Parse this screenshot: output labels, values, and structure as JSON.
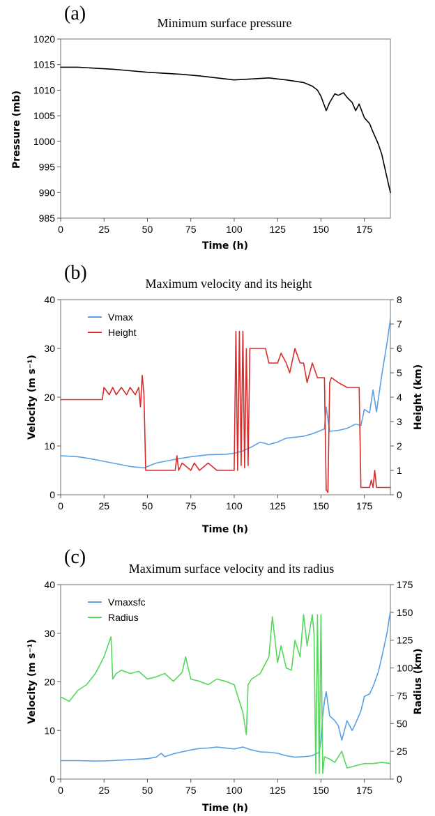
{
  "chart_data": [
    {
      "panel_label": "(a)",
      "type": "line",
      "title": "Minimum surface pressure",
      "xlabel": "Time (h)",
      "ylabel": "Pressure (mb)",
      "xlim": [
        0,
        190
      ],
      "ylim": [
        985,
        1020
      ],
      "xticks": [
        "0",
        "25",
        "50",
        "75",
        "100",
        "125",
        "150",
        "175"
      ],
      "yticks": [
        "985",
        "990",
        "995",
        "1000",
        "1005",
        "1010",
        "1015",
        "1020"
      ],
      "grid": false,
      "series": [
        {
          "color": "#000000",
          "x": [
            0,
            10,
            20,
            30,
            40,
            50,
            60,
            70,
            80,
            90,
            100,
            110,
            120,
            125,
            130,
            140,
            145,
            148,
            150,
            152,
            153,
            155,
            158,
            160,
            163,
            165,
            168,
            170,
            172,
            175,
            178,
            180,
            183,
            185,
            187,
            188,
            189,
            190
          ],
          "y": [
            1014.5,
            1014.5,
            1014.3,
            1014.1,
            1013.8,
            1013.5,
            1013.3,
            1013.1,
            1012.8,
            1012.4,
            1012.0,
            1012.2,
            1012.4,
            1012.2,
            1012.0,
            1011.5,
            1010.8,
            1010.0,
            1008.8,
            1007.0,
            1006.0,
            1007.6,
            1009.3,
            1009.0,
            1009.5,
            1008.6,
            1007.6,
            1006.0,
            1007.3,
            1004.6,
            1003.5,
            1001.8,
            999.5,
            997.5,
            994.5,
            993.0,
            991.5,
            990.0
          ]
        }
      ]
    },
    {
      "panel_label": "(b)",
      "type": "line",
      "title": "Maximum velocity and its height",
      "xlabel": "Time (h)",
      "ylabel": "Velocity (m s⁻¹)",
      "y2label": "Height (km)",
      "xlim": [
        0,
        190
      ],
      "ylim": [
        0,
        40
      ],
      "y2lim": [
        0,
        8
      ],
      "xticks": [
        "0",
        "25",
        "50",
        "75",
        "100",
        "125",
        "150",
        "175"
      ],
      "yticks": [
        "0",
        "10",
        "20",
        "30",
        "40"
      ],
      "y2ticks": [
        "0",
        "1",
        "2",
        "3",
        "4",
        "5",
        "6",
        "7",
        "8"
      ],
      "legend_position": "top-left",
      "grid": false,
      "series": [
        {
          "name": "Vmax",
          "axis": "left",
          "color": "#5aa0e6",
          "x": [
            0,
            10,
            20,
            30,
            40,
            48,
            55,
            65,
            75,
            85,
            95,
            100,
            105,
            110,
            115,
            120,
            125,
            130,
            135,
            140,
            145,
            150,
            152,
            153,
            155,
            160,
            165,
            170,
            173,
            175,
            178,
            180,
            182,
            185,
            188,
            190
          ],
          "y": [
            8,
            7.8,
            7.2,
            6.5,
            5.8,
            5.5,
            6.5,
            7.2,
            7.8,
            8.2,
            8.3,
            8.5,
            9.0,
            9.8,
            10.8,
            10.3,
            10.8,
            11.6,
            11.8,
            12.0,
            12.5,
            13.2,
            13.5,
            18.0,
            13.0,
            13.2,
            13.6,
            14.5,
            14.2,
            17.5,
            16.8,
            21.5,
            17.0,
            24.5,
            31.0,
            36.0
          ]
        },
        {
          "name": "Height",
          "axis": "right",
          "color": "#d62c2c",
          "x": [
            0,
            24,
            25,
            28,
            30,
            32,
            35,
            38,
            40,
            43,
            45,
            46,
            47,
            48,
            49,
            50,
            66,
            67,
            68,
            70,
            75,
            77,
            80,
            85,
            90,
            95,
            100,
            101,
            102,
            103,
            104,
            105,
            106,
            107,
            108,
            109,
            110,
            118,
            120,
            125,
            127,
            130,
            132,
            135,
            138,
            140,
            142,
            145,
            148,
            150,
            152,
            153,
            154,
            155,
            156,
            160,
            165,
            170,
            172,
            173,
            174,
            178,
            179,
            180,
            181,
            182,
            190
          ],
          "y": [
            3.9,
            3.9,
            4.4,
            4.1,
            4.4,
            4.1,
            4.4,
            4.1,
            4.4,
            4.1,
            4.4,
            3.6,
            4.9,
            4.1,
            1.0,
            1.0,
            1.0,
            1.6,
            1.0,
            1.3,
            1.0,
            1.3,
            1.0,
            1.3,
            1.0,
            1.0,
            1.0,
            6.7,
            1.0,
            6.7,
            1.2,
            6.7,
            1.1,
            6.0,
            1.2,
            6.0,
            6.0,
            6.0,
            5.4,
            5.4,
            5.8,
            5.4,
            5.0,
            6.0,
            5.4,
            5.4,
            4.6,
            5.4,
            4.8,
            4.8,
            4.8,
            0.2,
            0.1,
            4.6,
            4.8,
            4.6,
            4.4,
            4.4,
            4.4,
            0.3,
            0.3,
            0.3,
            0.6,
            0.3,
            1.0,
            0.3,
            0.3
          ]
        }
      ]
    },
    {
      "panel_label": "(c)",
      "type": "line",
      "title": "Maximum surface velocity and its radius",
      "xlabel": "Time (h)",
      "ylabel": "Velocity (m s⁻¹)",
      "y2label": "Radius (km)",
      "xlim": [
        0,
        190
      ],
      "ylim": [
        0,
        40
      ],
      "y2lim": [
        0,
        175
      ],
      "xticks": [
        "0",
        "25",
        "50",
        "75",
        "100",
        "125",
        "150",
        "175"
      ],
      "yticks": [
        "0",
        "10",
        "20",
        "30",
        "40"
      ],
      "y2ticks": [
        "0",
        "25",
        "50",
        "75",
        "100",
        "125",
        "150",
        "175"
      ],
      "legend_position": "top-left",
      "grid": false,
      "series": [
        {
          "name": "Vmaxsfc",
          "axis": "left",
          "color": "#5aa0e6",
          "x": [
            0,
            10,
            20,
            30,
            40,
            50,
            55,
            58,
            60,
            65,
            70,
            75,
            80,
            85,
            90,
            95,
            100,
            105,
            110,
            115,
            120,
            125,
            130,
            135,
            140,
            145,
            147,
            149,
            150,
            151,
            152,
            153,
            155,
            158,
            160,
            162,
            165,
            168,
            170,
            173,
            175,
            178,
            180,
            183,
            185,
            188,
            190
          ],
          "y": [
            3.8,
            3.8,
            3.7,
            3.8,
            4.0,
            4.2,
            4.5,
            5.3,
            4.6,
            5.2,
            5.6,
            6.0,
            6.3,
            6.4,
            6.6,
            6.4,
            6.2,
            6.6,
            6.0,
            5.6,
            5.5,
            5.3,
            4.8,
            4.5,
            4.6,
            4.8,
            5.2,
            5.5,
            8.0,
            13.0,
            16.0,
            18.0,
            13.0,
            12.0,
            11.0,
            8.0,
            12.0,
            10.0,
            11.5,
            14.0,
            17.0,
            17.5,
            19.0,
            22.0,
            25.0,
            30.0,
            34.5
          ]
        },
        {
          "name": "Radius",
          "axis": "right",
          "color": "#52d85a",
          "x": [
            0,
            5,
            10,
            15,
            20,
            25,
            29,
            30,
            32,
            35,
            40,
            45,
            50,
            55,
            60,
            65,
            70,
            72,
            75,
            80,
            85,
            90,
            95,
            100,
            103,
            105,
            107,
            108,
            110,
            115,
            120,
            122,
            125,
            127,
            130,
            133,
            135,
            138,
            140,
            142,
            145,
            146,
            147,
            148,
            149,
            150,
            151,
            152,
            155,
            158,
            160,
            162,
            165,
            170,
            175,
            180,
            185,
            190
          ],
          "y": [
            74,
            70,
            80,
            85,
            95,
            110,
            128,
            90,
            95,
            98,
            95,
            97,
            90,
            92,
            95,
            88,
            96,
            110,
            90,
            88,
            85,
            90,
            88,
            85,
            70,
            60,
            40,
            85,
            90,
            95,
            110,
            146,
            105,
            120,
            100,
            98,
            125,
            110,
            148,
            120,
            148,
            130,
            5,
            148,
            5,
            148,
            5,
            20,
            18,
            15,
            20,
            25,
            10,
            12,
            14,
            14,
            15,
            14
          ]
        }
      ]
    }
  ]
}
